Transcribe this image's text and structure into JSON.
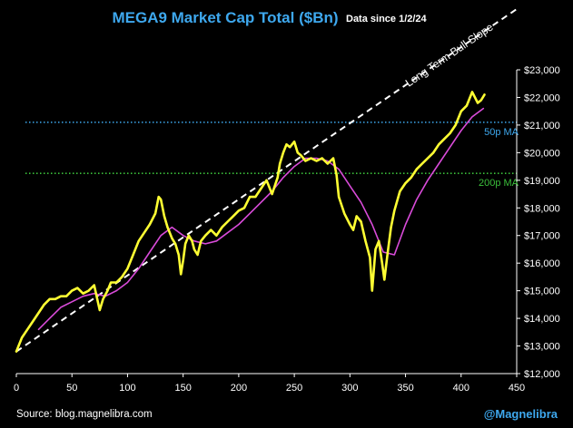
{
  "chart_data": {
    "type": "line",
    "title": "MEGA9 Market Cap Total ($Bn)",
    "subtitle": "Data since 1/2/24",
    "xlabel": "",
    "ylabel": "",
    "xlim": [
      0,
      450
    ],
    "ylim": [
      12000,
      23000
    ],
    "x_ticks": [
      0,
      50,
      100,
      150,
      200,
      250,
      300,
      350,
      400,
      450
    ],
    "y_ticks": [
      12000,
      13000,
      14000,
      15000,
      16000,
      17000,
      18000,
      19000,
      20000,
      21000,
      22000,
      23000
    ],
    "y_tick_labels": [
      "$12,000",
      "$13,000",
      "$14,000",
      "$15,000",
      "$16,000",
      "$17,000",
      "$18,000",
      "$19,000",
      "$20,000",
      "$21,000",
      "$22,000",
      "$23,000"
    ],
    "grid": false,
    "legend": "none",
    "series": [
      {
        "role": "market-cap",
        "color": "#ffff33",
        "points": [
          [
            0,
            12800
          ],
          [
            5,
            13300
          ],
          [
            10,
            13600
          ],
          [
            15,
            13900
          ],
          [
            20,
            14200
          ],
          [
            25,
            14500
          ],
          [
            30,
            14700
          ],
          [
            35,
            14700
          ],
          [
            40,
            14800
          ],
          [
            45,
            14800
          ],
          [
            50,
            15000
          ],
          [
            55,
            15100
          ],
          [
            60,
            14900
          ],
          [
            65,
            15000
          ],
          [
            70,
            15200
          ],
          [
            75,
            14300
          ],
          [
            78,
            14700
          ],
          [
            82,
            15000
          ],
          [
            85,
            15300
          ],
          [
            90,
            15300
          ],
          [
            95,
            15500
          ],
          [
            100,
            15800
          ],
          [
            105,
            16300
          ],
          [
            110,
            16800
          ],
          [
            115,
            17100
          ],
          [
            120,
            17400
          ],
          [
            125,
            17800
          ],
          [
            128,
            18400
          ],
          [
            130,
            18300
          ],
          [
            133,
            17700
          ],
          [
            136,
            17300
          ],
          [
            140,
            16900
          ],
          [
            143,
            16700
          ],
          [
            146,
            16300
          ],
          [
            148,
            15600
          ],
          [
            150,
            16100
          ],
          [
            152,
            16700
          ],
          [
            155,
            17000
          ],
          [
            158,
            16800
          ],
          [
            160,
            16500
          ],
          [
            163,
            16300
          ],
          [
            166,
            16800
          ],
          [
            170,
            17000
          ],
          [
            175,
            17200
          ],
          [
            180,
            17000
          ],
          [
            185,
            17300
          ],
          [
            190,
            17500
          ],
          [
            195,
            17700
          ],
          [
            200,
            17900
          ],
          [
            205,
            18000
          ],
          [
            210,
            18400
          ],
          [
            215,
            18400
          ],
          [
            220,
            18700
          ],
          [
            225,
            19000
          ],
          [
            230,
            18500
          ],
          [
            235,
            19100
          ],
          [
            237,
            19600
          ],
          [
            240,
            20000
          ],
          [
            243,
            20300
          ],
          [
            246,
            20200
          ],
          [
            250,
            20400
          ],
          [
            253,
            20000
          ],
          [
            256,
            19900
          ],
          [
            260,
            19700
          ],
          [
            265,
            19800
          ],
          [
            270,
            19700
          ],
          [
            275,
            19800
          ],
          [
            280,
            19600
          ],
          [
            285,
            19800
          ],
          [
            288,
            19200
          ],
          [
            290,
            18400
          ],
          [
            295,
            17800
          ],
          [
            300,
            17400
          ],
          [
            303,
            17200
          ],
          [
            306,
            17700
          ],
          [
            310,
            17500
          ],
          [
            314,
            16800
          ],
          [
            318,
            16200
          ],
          [
            320,
            15000
          ],
          [
            323,
            16500
          ],
          [
            326,
            16800
          ],
          [
            329,
            16000
          ],
          [
            331,
            15400
          ],
          [
            334,
            16400
          ],
          [
            337,
            17300
          ],
          [
            340,
            17900
          ],
          [
            345,
            18600
          ],
          [
            350,
            18900
          ],
          [
            355,
            19100
          ],
          [
            360,
            19400
          ],
          [
            365,
            19600
          ],
          [
            370,
            19800
          ],
          [
            375,
            20000
          ],
          [
            380,
            20300
          ],
          [
            385,
            20500
          ],
          [
            390,
            20700
          ],
          [
            395,
            21000
          ],
          [
            400,
            21500
          ],
          [
            405,
            21700
          ],
          [
            410,
            22200
          ],
          [
            415,
            21800
          ],
          [
            418,
            21900
          ],
          [
            421,
            22100
          ]
        ]
      },
      {
        "role": "moving-average",
        "color": "#d94bd9",
        "points": [
          [
            20,
            13600
          ],
          [
            30,
            14000
          ],
          [
            40,
            14400
          ],
          [
            50,
            14600
          ],
          [
            60,
            14800
          ],
          [
            70,
            14900
          ],
          [
            80,
            14800
          ],
          [
            90,
            15000
          ],
          [
            100,
            15300
          ],
          [
            110,
            15800
          ],
          [
            120,
            16400
          ],
          [
            130,
            17000
          ],
          [
            140,
            17300
          ],
          [
            150,
            17000
          ],
          [
            160,
            16800
          ],
          [
            170,
            16700
          ],
          [
            180,
            16800
          ],
          [
            190,
            17100
          ],
          [
            200,
            17400
          ],
          [
            210,
            17800
          ],
          [
            220,
            18200
          ],
          [
            230,
            18600
          ],
          [
            240,
            19100
          ],
          [
            250,
            19500
          ],
          [
            260,
            19800
          ],
          [
            270,
            19800
          ],
          [
            280,
            19700
          ],
          [
            290,
            19400
          ],
          [
            300,
            18800
          ],
          [
            310,
            18200
          ],
          [
            320,
            17400
          ],
          [
            330,
            16400
          ],
          [
            340,
            16300
          ],
          [
            350,
            17400
          ],
          [
            360,
            18300
          ],
          [
            370,
            19000
          ],
          [
            380,
            19600
          ],
          [
            390,
            20200
          ],
          [
            400,
            20800
          ],
          [
            410,
            21300
          ],
          [
            420,
            21600
          ]
        ]
      }
    ],
    "reference_lines": [
      {
        "role": "50p",
        "y": 21100,
        "color": "#3ea8ee",
        "style": "dotted",
        "label": "50p MA"
      },
      {
        "role": "200p",
        "y": 19250,
        "color": "#3bbf3b",
        "style": "dotted",
        "label": "200p MA"
      }
    ],
    "trend_line": {
      "label": "Long Term Bull Slope",
      "color": "#ffffff",
      "style": "dashed",
      "from": [
        0,
        12800
      ],
      "to": [
        450,
        25200
      ]
    }
  },
  "footer": {
    "source": "Source: blog.magnelibra.com",
    "handle": "@Magnelibra"
  }
}
